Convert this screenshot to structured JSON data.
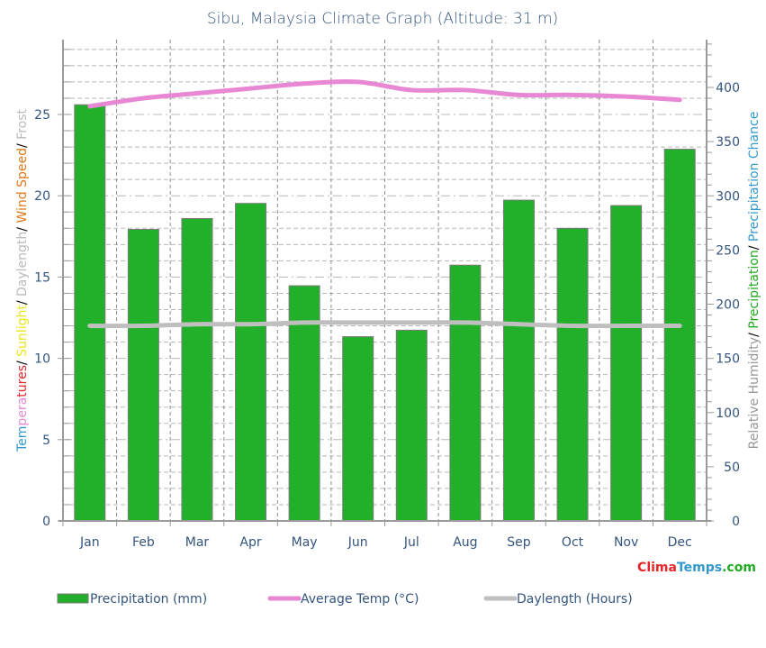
{
  "title": "Sibu, Malaysia Climate Graph (Altitude: 31 m)",
  "left_axis": {
    "title_parts": [
      {
        "text": "Temperatures",
        "color": "#3399cc",
        "split": [
          {
            "text": "Tem",
            "color": "#3399cc"
          },
          {
            "text": "pera",
            "color": "#e887d3"
          },
          {
            "text": "tures",
            "color": "#e8262a"
          }
        ]
      },
      {
        "text": "/ ",
        "color": "#000000"
      },
      {
        "text": "Sunlight",
        "color": "#e8e81a"
      },
      {
        "text": "/ ",
        "color": "#000000"
      },
      {
        "text": "Daylength",
        "color": "#bbbbbb"
      },
      {
        "text": "/ ",
        "color": "#000000"
      },
      {
        "text": "Wind Speed",
        "color": "#e07818"
      },
      {
        "text": "/ ",
        "color": "#000000"
      },
      {
        "text": "Frost",
        "color": "#bbbbbb"
      }
    ],
    "ticks": [
      "0",
      "5",
      "10",
      "15",
      "20",
      "25"
    ]
  },
  "right_axis": {
    "title_parts": [
      {
        "text": "Relative Humidity",
        "color": "#999999"
      },
      {
        "text": "/ ",
        "color": "#000000"
      },
      {
        "text": "Precipitation",
        "color": "#22aa22"
      },
      {
        "text": "/ ",
        "color": "#000000"
      },
      {
        "text": "Precipitation Chance",
        "color": "#3399cc"
      }
    ],
    "ticks": [
      "0",
      "50",
      "100",
      "150",
      "200",
      "250",
      "300",
      "350",
      "400"
    ]
  },
  "legend": {
    "items": [
      {
        "label": "Precipitation (mm)",
        "type": "bar",
        "color": "#22b02a"
      },
      {
        "label": "Average Temp (°C)",
        "type": "line",
        "color": "#e887d3"
      },
      {
        "label": "Daylength (Hours)",
        "type": "line",
        "color": "#bfbfbf"
      }
    ]
  },
  "brand": {
    "parts": [
      {
        "text": "Clima",
        "color": "#e8262a"
      },
      {
        "text": "Temps",
        "color": "#3399cc"
      },
      {
        "text": ".com",
        "color": "#22aa22"
      }
    ]
  },
  "chart_data": {
    "type": "bar",
    "title": "Sibu, Malaysia Climate Graph (Altitude: 31 m)",
    "categories": [
      "Jan",
      "Feb",
      "Mar",
      "Apr",
      "May",
      "Jun",
      "Jul",
      "Aug",
      "Sep",
      "Oct",
      "Nov",
      "Dec"
    ],
    "series": [
      {
        "name": "Precipitation (mm)",
        "type": "bar",
        "axis": "right",
        "color": "#22b02a",
        "values": [
          384,
          269,
          279,
          293,
          217,
          170,
          176,
          236,
          296,
          270,
          291,
          343
        ]
      },
      {
        "name": "Average Temp (°C)",
        "type": "line",
        "axis": "left",
        "color": "#e887d3",
        "values": [
          25.5,
          26.0,
          26.3,
          26.6,
          26.9,
          27.0,
          26.5,
          26.5,
          26.2,
          26.2,
          26.1,
          25.9
        ]
      },
      {
        "name": "Daylength (Hours)",
        "type": "line",
        "axis": "left",
        "color": "#bfbfbf",
        "values": [
          12.0,
          12.0,
          12.1,
          12.1,
          12.2,
          12.2,
          12.2,
          12.2,
          12.1,
          12.0,
          12.0,
          12.0
        ]
      }
    ],
    "xlabel": "",
    "ylabel": "Temperatures/ Sunlight/ Daylength/ Wind Speed/ Frost",
    "y2label": "Relative Humidity/ Precipitation/ Precipitation Chance",
    "ylim": [
      0,
      29.6
    ],
    "y2lim": [
      0,
      444
    ],
    "left_ticks": [
      0,
      5,
      10,
      15,
      20,
      25
    ],
    "right_ticks": [
      0,
      50,
      100,
      150,
      200,
      250,
      300,
      350,
      400
    ],
    "grid": true,
    "legend_position": "bottom"
  }
}
